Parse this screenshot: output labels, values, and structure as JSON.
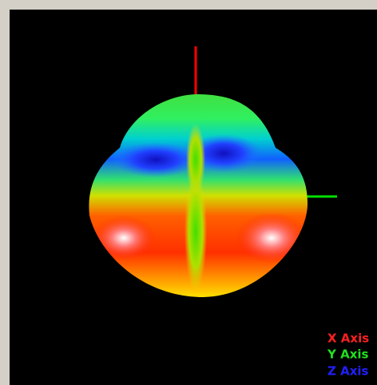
{
  "legend": {
    "items": [
      "X Axis",
      "Y Axis",
      "Z Axis"
    ]
  }
}
